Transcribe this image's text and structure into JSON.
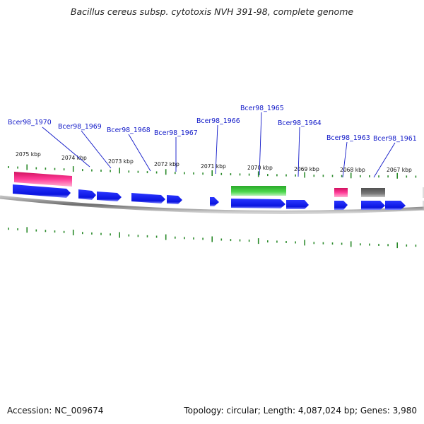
{
  "title": "Bacillus cereus subsp. cytotoxis NVH 391-98, complete genome",
  "footer": {
    "accession": "Accession: NC_009674",
    "topology": "Topology: circular; Length: 4,087,024 bp; Genes: 3,980"
  },
  "colors": {
    "cds": "#0a16e8",
    "rRNA": "#ff2c8c",
    "tRNA": "#3ec63e",
    "misc": "#6a6a6a",
    "tick": "#2a8a2a",
    "callout": "#1018c8",
    "backbone": "#888888"
  },
  "ruler_labels": [
    "2075 kbp",
    "2074 kbp",
    "2073 kbp",
    "2072 kbp",
    "2071 kbp",
    "2070 kbp",
    "2069 kbp",
    "2068 kbp",
    "2067 kbp"
  ],
  "gene_labels": [
    "Bcer98_1970",
    "Bcer98_1969",
    "Bcer98_1968",
    "Bcer98_1967",
    "Bcer98_1966",
    "Bcer98_1965",
    "Bcer98_1964",
    "Bcer98_1963",
    "Bcer98_1961"
  ]
}
